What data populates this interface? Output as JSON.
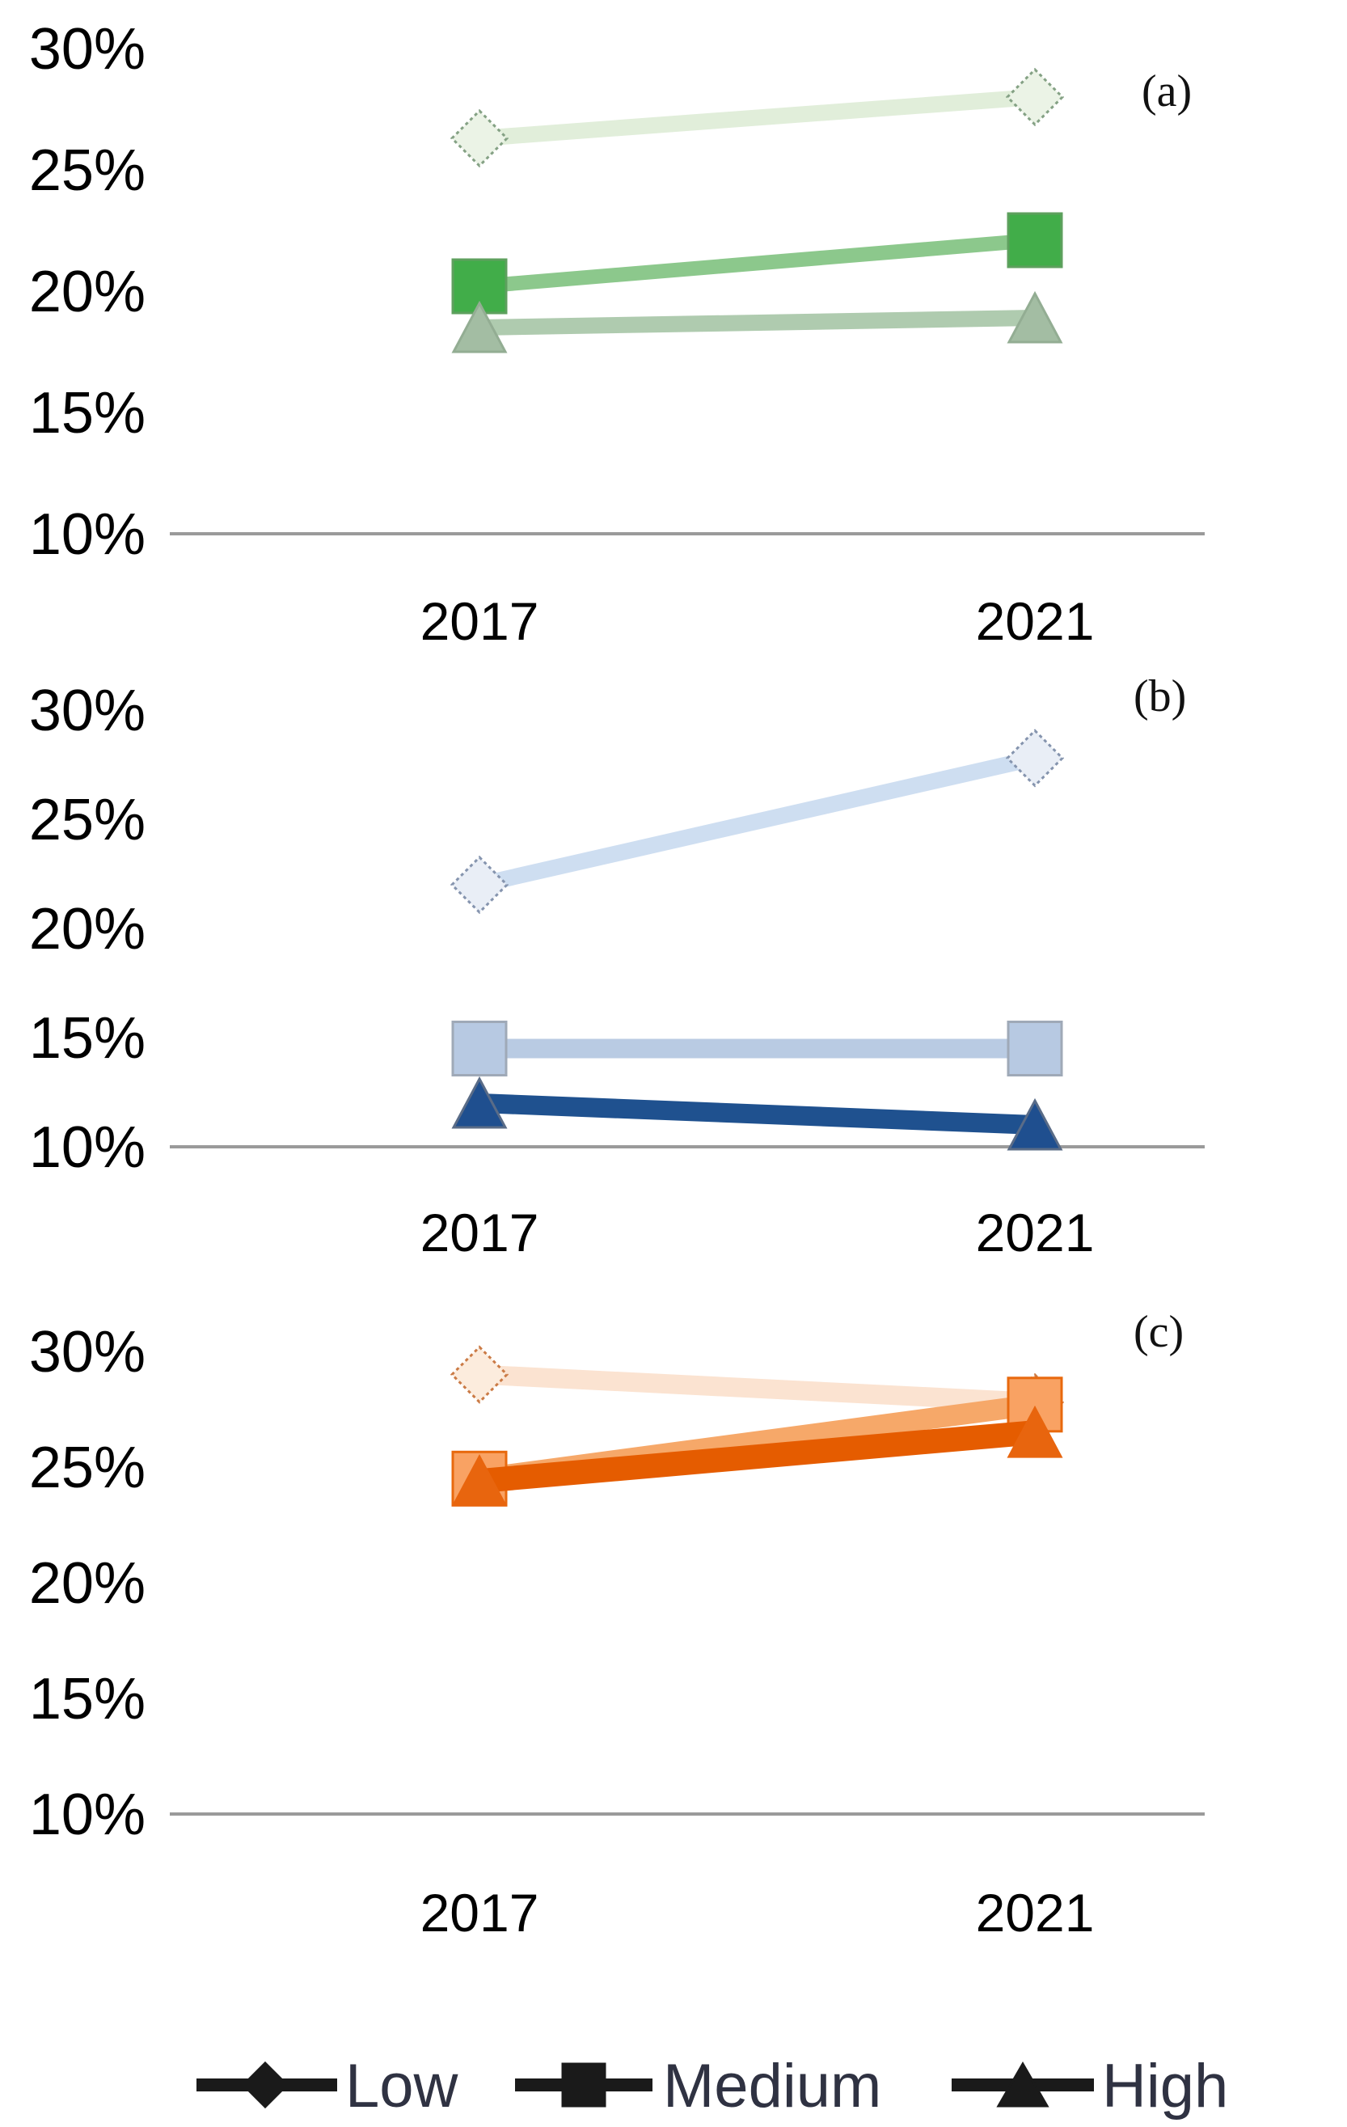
{
  "figure": {
    "background": "#ffffff",
    "axis_color": "#9a9a9a",
    "tick_text_color": "#000000"
  },
  "chart_data": [
    {
      "type": "line",
      "panel_label": "(a)",
      "categories": [
        "2017",
        "2021"
      ],
      "ylim": [
        10,
        30
      ],
      "yticks": [
        {
          "v": 30,
          "label": "30%"
        },
        {
          "v": 25,
          "label": "25%"
        },
        {
          "v": 20,
          "label": "20%"
        },
        {
          "v": 15,
          "label": "15%"
        },
        {
          "v": 10,
          "label": "10%"
        }
      ],
      "grid": "off",
      "series": [
        {
          "name": "Low",
          "marker": "diamond",
          "values": [
            26.3,
            28.0
          ],
          "line_color": "#e1eeda",
          "marker_fill": "#ebf3e6",
          "marker_stroke": "#84a184",
          "marker_stroke_style": "dotted"
        },
        {
          "name": "Medium",
          "marker": "square",
          "values": [
            20.2,
            22.1
          ],
          "line_color": "#8cc88c",
          "marker_fill": "#41ad49",
          "marker_stroke": "#5ea05e",
          "marker_stroke_style": "solid"
        },
        {
          "name": "High",
          "marker": "triangle",
          "values": [
            18.5,
            18.9
          ],
          "line_color": "#afcbaf",
          "marker_fill": "#a3bda3",
          "marker_stroke": "#93ad93",
          "marker_stroke_style": "solid"
        }
      ]
    },
    {
      "type": "line",
      "panel_label": "(b)",
      "categories": [
        "2017",
        "2021"
      ],
      "ylim": [
        10,
        30
      ],
      "yticks": [
        {
          "v": 30,
          "label": "30%"
        },
        {
          "v": 25,
          "label": "25%"
        },
        {
          "v": 20,
          "label": "20%"
        },
        {
          "v": 15,
          "label": "15%"
        },
        {
          "v": 10,
          "label": "10%"
        }
      ],
      "grid": "off",
      "series": [
        {
          "name": "Low",
          "marker": "diamond",
          "values": [
            22.0,
            27.8
          ],
          "line_color": "#cedef1",
          "marker_fill": "#e9eef6",
          "marker_stroke": "#8594ae",
          "marker_stroke_style": "dotted"
        },
        {
          "name": "Medium",
          "marker": "square",
          "values": [
            14.5,
            14.5
          ],
          "line_color": "#b9cbe3",
          "marker_fill": "#b7c9e2",
          "marker_stroke": "#9fa9b7",
          "marker_stroke_style": "solid"
        },
        {
          "name": "High",
          "marker": "triangle",
          "values": [
            12.0,
            11.0
          ],
          "line_color": "#1f518f",
          "marker_fill": "#1f4f8f",
          "marker_stroke": "#5a6c87",
          "marker_stroke_style": "solid"
        }
      ]
    },
    {
      "type": "line",
      "panel_label": "(c)",
      "categories": [
        "2017",
        "2021"
      ],
      "ylim": [
        10,
        30
      ],
      "yticks": [
        {
          "v": 30,
          "label": "30%"
        },
        {
          "v": 25,
          "label": "25%"
        },
        {
          "v": 20,
          "label": "20%"
        },
        {
          "v": 15,
          "label": "15%"
        },
        {
          "v": 10,
          "label": "10%"
        }
      ],
      "grid": "off",
      "series": [
        {
          "name": "Low",
          "marker": "diamond",
          "values": [
            29.0,
            27.8
          ],
          "line_color": "#fbe3d1",
          "marker_fill": "#fcecdd",
          "marker_stroke": "#cb7b46",
          "marker_stroke_style": "dotted"
        },
        {
          "name": "Medium",
          "marker": "square",
          "values": [
            24.5,
            27.7
          ],
          "line_color": "#f6a869",
          "marker_fill": "#f9a263",
          "marker_stroke": "#e8690e",
          "marker_stroke_style": "solid"
        },
        {
          "name": "High",
          "marker": "triangle",
          "values": [
            24.4,
            26.5
          ],
          "line_color": "#e55c00",
          "marker_fill": "#e8650e",
          "marker_stroke": "#e8650e",
          "marker_stroke_style": "solid"
        }
      ]
    }
  ],
  "legend": {
    "position": "bottom",
    "marker_color": "#1a1a1a",
    "text_color": "#2f3242",
    "items": [
      {
        "label": "Low",
        "marker": "diamond"
      },
      {
        "label": "Medium",
        "marker": "square"
      },
      {
        "label": "High",
        "marker": "triangle"
      }
    ]
  }
}
